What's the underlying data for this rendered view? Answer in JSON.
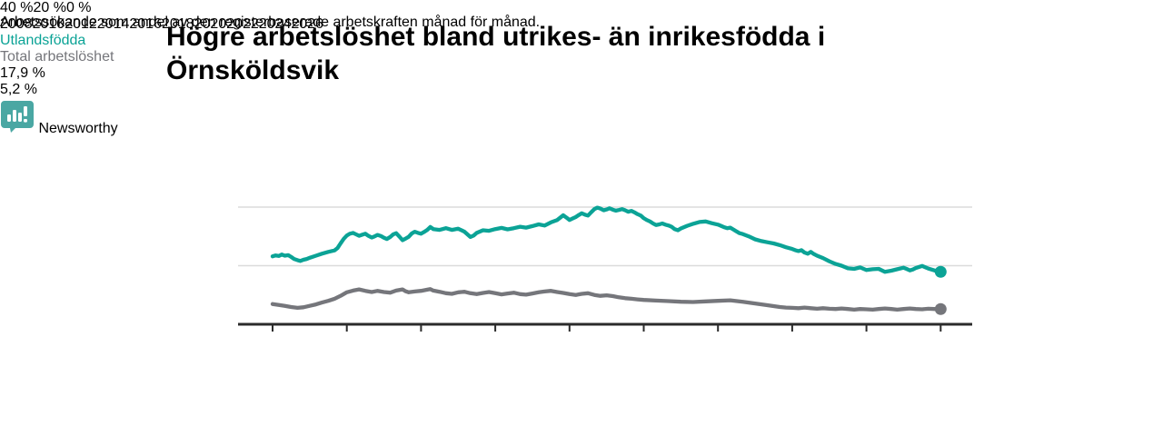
{
  "header": {
    "title": "Högre arbetslöshet bland utrikes- än inrikesfödda i Örnsköldsvik",
    "subtitle": "Arbetssökande som andel av den registerbaserade arbetskraften månad för månad."
  },
  "footer": {
    "brand": "Newsworthy",
    "logo_icon": "newsworthy-speech-bubble-bar-chart-icon"
  },
  "colors": {
    "accent_teal": "#0ba396",
    "series_gray": "#75767b",
    "grid": "#dbdbdb",
    "axis": "#2b2b2b",
    "text_dark": "#1a1a1a",
    "logo_teal": "#4aa7a3",
    "brand_text_teal": "#3ea29e"
  },
  "chart_data": {
    "type": "line",
    "title": "Högre arbetslöshet bland utrikes- än inrikesfödda i Örnsköldsvik",
    "subtitle": "Arbetssökande som andel av den registerbaserade arbetskraften månad för månad.",
    "unit": "%",
    "xlim": [
      2007.2,
      2026.9
    ],
    "ylim": [
      0,
      44
    ],
    "grid": "horizontal-only",
    "legend_position": "inline-labels",
    "x_ticks": [
      {
        "label": "2008",
        "year": 2008
      },
      {
        "label": "2010",
        "year": 2010
      },
      {
        "label": "2012",
        "year": 2012
      },
      {
        "label": "2014",
        "year": 2014
      },
      {
        "label": "2016",
        "year": 2016
      },
      {
        "label": "2018",
        "year": 2018
      },
      {
        "label": "2020",
        "year": 2020
      },
      {
        "label": "2022",
        "year": 2022
      },
      {
        "label": "2024",
        "year": 2024
      },
      {
        "label": "2026",
        "year": 2026
      }
    ],
    "y_ticks": [
      {
        "label": "0 %",
        "value": 0
      },
      {
        "label": "20 %",
        "value": 20
      },
      {
        "label": "40 %",
        "value": 40
      }
    ],
    "series": [
      {
        "name": "Utlandsfödda",
        "color": "#0ba396",
        "end_label": "17,9 %",
        "end_value": 17.9,
        "label_pos": {
          "x": 548,
          "y": 255
        },
        "points": [
          [
            2008.0,
            23.2
          ],
          [
            2008.08,
            23.5
          ],
          [
            2008.17,
            23.3
          ],
          [
            2008.25,
            23.8
          ],
          [
            2008.33,
            23.4
          ],
          [
            2008.42,
            23.6
          ],
          [
            2008.5,
            23.0
          ],
          [
            2008.58,
            22.3
          ],
          [
            2008.67,
            21.9
          ],
          [
            2008.75,
            21.6
          ],
          [
            2008.83,
            22.0
          ],
          [
            2008.92,
            22.3
          ],
          [
            2009.0,
            22.7
          ],
          [
            2009.17,
            23.4
          ],
          [
            2009.33,
            24.1
          ],
          [
            2009.5,
            24.7
          ],
          [
            2009.67,
            25.2
          ],
          [
            2009.75,
            26.0
          ],
          [
            2009.83,
            27.6
          ],
          [
            2009.92,
            29.2
          ],
          [
            2010.0,
            30.3
          ],
          [
            2010.08,
            30.9
          ],
          [
            2010.17,
            31.2
          ],
          [
            2010.25,
            30.7
          ],
          [
            2010.33,
            30.2
          ],
          [
            2010.42,
            30.6
          ],
          [
            2010.5,
            30.9
          ],
          [
            2010.58,
            30.2
          ],
          [
            2010.67,
            29.6
          ],
          [
            2010.75,
            30.0
          ],
          [
            2010.83,
            30.5
          ],
          [
            2010.92,
            30.1
          ],
          [
            2011.0,
            29.5
          ],
          [
            2011.08,
            29.1
          ],
          [
            2011.17,
            29.8
          ],
          [
            2011.25,
            30.7
          ],
          [
            2011.33,
            31.1
          ],
          [
            2011.42,
            29.9
          ],
          [
            2011.5,
            28.7
          ],
          [
            2011.58,
            29.2
          ],
          [
            2011.67,
            29.9
          ],
          [
            2011.75,
            31.0
          ],
          [
            2011.83,
            31.6
          ],
          [
            2011.92,
            31.2
          ],
          [
            2012.0,
            30.9
          ],
          [
            2012.08,
            31.5
          ],
          [
            2012.17,
            32.2
          ],
          [
            2012.25,
            33.2
          ],
          [
            2012.33,
            32.5
          ],
          [
            2012.5,
            32.2
          ],
          [
            2012.67,
            32.8
          ],
          [
            2012.83,
            32.2
          ],
          [
            2013.0,
            32.6
          ],
          [
            2013.17,
            31.6
          ],
          [
            2013.33,
            29.8
          ],
          [
            2013.42,
            30.3
          ],
          [
            2013.5,
            31.2
          ],
          [
            2013.67,
            32.1
          ],
          [
            2013.83,
            31.9
          ],
          [
            2014.0,
            32.5
          ],
          [
            2014.17,
            32.9
          ],
          [
            2014.33,
            32.4
          ],
          [
            2014.5,
            32.8
          ],
          [
            2014.67,
            33.3
          ],
          [
            2014.83,
            33.0
          ],
          [
            2015.0,
            33.5
          ],
          [
            2015.17,
            34.1
          ],
          [
            2015.33,
            33.7
          ],
          [
            2015.5,
            34.8
          ],
          [
            2015.67,
            35.6
          ],
          [
            2015.83,
            37.2
          ],
          [
            2015.92,
            36.4
          ],
          [
            2016.0,
            35.6
          ],
          [
            2016.08,
            36.1
          ],
          [
            2016.17,
            36.6
          ],
          [
            2016.25,
            37.3
          ],
          [
            2016.33,
            37.9
          ],
          [
            2016.42,
            37.4
          ],
          [
            2016.5,
            37.1
          ],
          [
            2016.58,
            38.2
          ],
          [
            2016.67,
            39.3
          ],
          [
            2016.75,
            39.8
          ],
          [
            2016.83,
            39.5
          ],
          [
            2016.92,
            38.9
          ],
          [
            2017.0,
            39.2
          ],
          [
            2017.08,
            39.6
          ],
          [
            2017.17,
            39.1
          ],
          [
            2017.25,
            38.8
          ],
          [
            2017.33,
            39.0
          ],
          [
            2017.42,
            39.3
          ],
          [
            2017.5,
            38.9
          ],
          [
            2017.58,
            38.4
          ],
          [
            2017.67,
            38.7
          ],
          [
            2017.75,
            38.2
          ],
          [
            2017.83,
            37.6
          ],
          [
            2017.92,
            37.1
          ],
          [
            2018.0,
            36.2
          ],
          [
            2018.08,
            35.6
          ],
          [
            2018.17,
            35.1
          ],
          [
            2018.25,
            34.4
          ],
          [
            2018.33,
            33.9
          ],
          [
            2018.42,
            34.1
          ],
          [
            2018.5,
            34.4
          ],
          [
            2018.58,
            34.0
          ],
          [
            2018.67,
            33.7
          ],
          [
            2018.75,
            33.3
          ],
          [
            2018.83,
            32.5
          ],
          [
            2018.92,
            32.1
          ],
          [
            2019.0,
            32.7
          ],
          [
            2019.17,
            33.6
          ],
          [
            2019.33,
            34.3
          ],
          [
            2019.5,
            34.9
          ],
          [
            2019.67,
            35.1
          ],
          [
            2019.83,
            34.5
          ],
          [
            2020.0,
            34.0
          ],
          [
            2020.08,
            33.6
          ],
          [
            2020.17,
            33.1
          ],
          [
            2020.25,
            32.8
          ],
          [
            2020.33,
            33.0
          ],
          [
            2020.42,
            32.3
          ],
          [
            2020.5,
            31.7
          ],
          [
            2020.58,
            31.1
          ],
          [
            2020.67,
            30.8
          ],
          [
            2020.83,
            30.0
          ],
          [
            2021.0,
            29.0
          ],
          [
            2021.17,
            28.4
          ],
          [
            2021.33,
            28.0
          ],
          [
            2021.5,
            27.6
          ],
          [
            2021.67,
            27.0
          ],
          [
            2021.83,
            26.3
          ],
          [
            2022.0,
            25.7
          ],
          [
            2022.08,
            25.3
          ],
          [
            2022.17,
            25.0
          ],
          [
            2022.25,
            25.3
          ],
          [
            2022.33,
            24.5
          ],
          [
            2022.42,
            24.1
          ],
          [
            2022.5,
            24.7
          ],
          [
            2022.58,
            24.0
          ],
          [
            2022.67,
            23.4
          ],
          [
            2022.83,
            22.6
          ],
          [
            2023.0,
            21.5
          ],
          [
            2023.17,
            20.6
          ],
          [
            2023.33,
            20.0
          ],
          [
            2023.5,
            19.1
          ],
          [
            2023.67,
            18.9
          ],
          [
            2023.83,
            19.4
          ],
          [
            2024.0,
            18.5
          ],
          [
            2024.17,
            18.8
          ],
          [
            2024.33,
            18.9
          ],
          [
            2024.5,
            17.9
          ],
          [
            2024.67,
            18.3
          ],
          [
            2024.83,
            18.8
          ],
          [
            2025.0,
            19.3
          ],
          [
            2025.08,
            18.9
          ],
          [
            2025.17,
            18.4
          ],
          [
            2025.25,
            18.7
          ],
          [
            2025.33,
            19.2
          ],
          [
            2025.5,
            19.9
          ],
          [
            2025.58,
            19.5
          ],
          [
            2025.67,
            19.0
          ],
          [
            2025.83,
            18.4
          ],
          [
            2025.92,
            18.0
          ],
          [
            2026.0,
            17.9
          ]
        ]
      },
      {
        "name": "Total arbetslöshet",
        "color": "#75767b",
        "end_label": "5,2 %",
        "end_value": 5.2,
        "label_pos": {
          "x": 789,
          "y": 328
        },
        "points": [
          [
            2008.0,
            6.9
          ],
          [
            2008.17,
            6.6
          ],
          [
            2008.33,
            6.3
          ],
          [
            2008.5,
            5.9
          ],
          [
            2008.67,
            5.6
          ],
          [
            2008.83,
            5.8
          ],
          [
            2009.0,
            6.3
          ],
          [
            2009.17,
            6.8
          ],
          [
            2009.33,
            7.4
          ],
          [
            2009.5,
            8.0
          ],
          [
            2009.67,
            8.7
          ],
          [
            2009.83,
            9.7
          ],
          [
            2010.0,
            10.9
          ],
          [
            2010.17,
            11.5
          ],
          [
            2010.33,
            11.9
          ],
          [
            2010.5,
            11.4
          ],
          [
            2010.67,
            11.0
          ],
          [
            2010.83,
            11.4
          ],
          [
            2011.0,
            11.0
          ],
          [
            2011.17,
            10.8
          ],
          [
            2011.33,
            11.5
          ],
          [
            2011.5,
            11.9
          ],
          [
            2011.58,
            11.3
          ],
          [
            2011.67,
            10.9
          ],
          [
            2011.83,
            11.2
          ],
          [
            2012.0,
            11.4
          ],
          [
            2012.17,
            11.8
          ],
          [
            2012.25,
            12.0
          ],
          [
            2012.33,
            11.5
          ],
          [
            2012.5,
            11.1
          ],
          [
            2012.67,
            10.6
          ],
          [
            2012.83,
            10.4
          ],
          [
            2013.0,
            10.9
          ],
          [
            2013.17,
            11.1
          ],
          [
            2013.33,
            10.6
          ],
          [
            2013.5,
            10.3
          ],
          [
            2013.67,
            10.7
          ],
          [
            2013.83,
            11.0
          ],
          [
            2014.0,
            10.6
          ],
          [
            2014.17,
            10.2
          ],
          [
            2014.33,
            10.5
          ],
          [
            2014.5,
            10.8
          ],
          [
            2014.67,
            10.3
          ],
          [
            2014.83,
            10.1
          ],
          [
            2015.0,
            10.5
          ],
          [
            2015.17,
            10.9
          ],
          [
            2015.33,
            11.2
          ],
          [
            2015.5,
            11.4
          ],
          [
            2015.67,
            11.0
          ],
          [
            2015.83,
            10.7
          ],
          [
            2016.0,
            10.3
          ],
          [
            2016.17,
            10.0
          ],
          [
            2016.33,
            10.4
          ],
          [
            2016.5,
            10.6
          ],
          [
            2016.67,
            10.0
          ],
          [
            2016.83,
            9.7
          ],
          [
            2017.0,
            9.9
          ],
          [
            2017.17,
            9.6
          ],
          [
            2017.33,
            9.2
          ],
          [
            2017.5,
            8.9
          ],
          [
            2017.67,
            8.7
          ],
          [
            2017.83,
            8.5
          ],
          [
            2018.0,
            8.3
          ],
          [
            2018.33,
            8.1
          ],
          [
            2018.67,
            7.9
          ],
          [
            2019.0,
            7.7
          ],
          [
            2019.33,
            7.6
          ],
          [
            2019.67,
            7.8
          ],
          [
            2020.0,
            8.0
          ],
          [
            2020.33,
            8.2
          ],
          [
            2020.67,
            7.7
          ],
          [
            2021.0,
            7.1
          ],
          [
            2021.33,
            6.5
          ],
          [
            2021.67,
            5.9
          ],
          [
            2021.83,
            5.7
          ],
          [
            2022.0,
            5.6
          ],
          [
            2022.17,
            5.5
          ],
          [
            2022.33,
            5.7
          ],
          [
            2022.5,
            5.5
          ],
          [
            2022.67,
            5.3
          ],
          [
            2022.83,
            5.5
          ],
          [
            2023.0,
            5.3
          ],
          [
            2023.17,
            5.2
          ],
          [
            2023.33,
            5.4
          ],
          [
            2023.5,
            5.2
          ],
          [
            2023.67,
            5.0
          ],
          [
            2023.83,
            5.2
          ],
          [
            2024.0,
            5.1
          ],
          [
            2024.17,
            5.0
          ],
          [
            2024.33,
            5.2
          ],
          [
            2024.5,
            5.4
          ],
          [
            2024.67,
            5.2
          ],
          [
            2024.83,
            5.0
          ],
          [
            2025.0,
            5.2
          ],
          [
            2025.17,
            5.4
          ],
          [
            2025.33,
            5.2
          ],
          [
            2025.5,
            5.1
          ],
          [
            2025.67,
            5.3
          ],
          [
            2025.83,
            5.2
          ],
          [
            2026.0,
            5.2
          ]
        ]
      }
    ]
  }
}
